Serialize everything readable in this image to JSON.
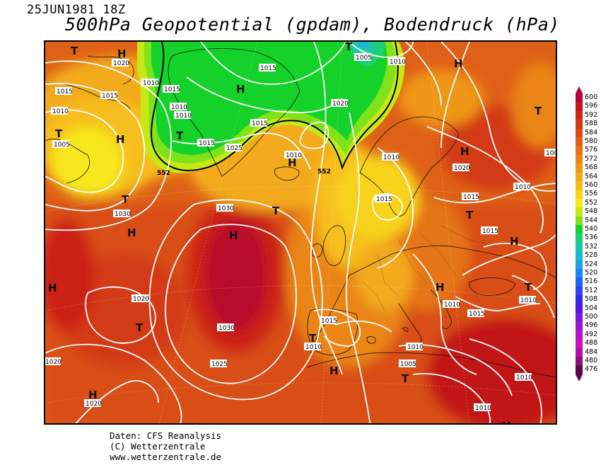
{
  "header": {
    "date": "25JUN1981 18Z",
    "title": "500hPa Geopotential (gpdam), Bodendruck (hPa)"
  },
  "legend": {
    "values": [
      "600",
      "596",
      "592",
      "588",
      "584",
      "580",
      "576",
      "572",
      "568",
      "564",
      "560",
      "556",
      "552",
      "548",
      "544",
      "540",
      "536",
      "532",
      "528",
      "524",
      "520",
      "516",
      "512",
      "508",
      "504",
      "500",
      "496",
      "492",
      "488",
      "484",
      "480",
      "476"
    ],
    "colors": [
      "#b8003a",
      "#c21818",
      "#cc2418",
      "#d33a17",
      "#d94e17",
      "#df6117",
      "#e57417",
      "#ea8516",
      "#ef9718",
      "#f3aa1a",
      "#f6be1b",
      "#f7d31c",
      "#f7e81c",
      "#c6e817",
      "#7fe21a",
      "#14d229",
      "#1ecf76",
      "#1ec7a8",
      "#1eb6d0",
      "#1ea2e6",
      "#1e84ef",
      "#1f64f1",
      "#2a44ee",
      "#3727e0",
      "#5218dd",
      "#7a17d9",
      "#9a17d2",
      "#b216ca",
      "#c814b8",
      "#b50fa0",
      "#8f0b80",
      "#5e0650"
    ]
  },
  "map": {
    "highs": [
      "H",
      "H",
      "H",
      "H",
      "H",
      "H",
      "H",
      "H",
      "H",
      "H",
      "H",
      "H",
      "H",
      "H"
    ],
    "lows": [
      "T",
      "T",
      "T",
      "T",
      "T",
      "T",
      "T",
      "T",
      "T",
      "T",
      "T",
      "T"
    ],
    "isobar_labels": [
      "1020",
      "1015",
      "1010",
      "1005",
      "1010",
      "1015",
      "1010",
      "1010",
      "1015",
      "1020",
      "1015",
      "1025",
      "1030",
      "1015",
      "1005",
      "1010",
      "1020",
      "1010",
      "1010",
      "1015",
      "1015",
      "1010",
      "1015",
      "1015",
      "1020",
      "1030",
      "1020",
      "1030",
      "1025",
      "1015",
      "1010",
      "1010",
      "1005",
      "1010",
      "1010",
      "1020",
      "1020",
      "1010",
      "1010",
      "100"
    ],
    "contour_labels": [
      "552",
      "552"
    ]
  },
  "footer": {
    "line1": "Daten: CFS Reanalysis",
    "line2": "(C) Wetterzentrale",
    "line3": "www.wetterzentrale.de"
  }
}
